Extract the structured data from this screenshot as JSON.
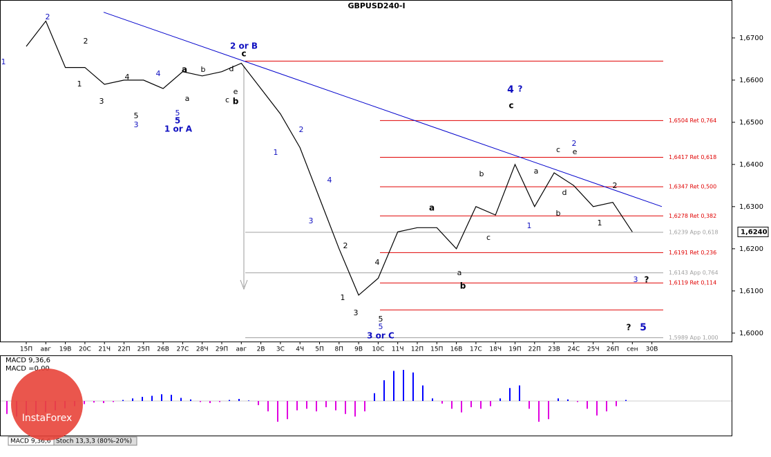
{
  "chart_data": [
    {
      "type": "line",
      "title": "GBPUSD240-I",
      "categories": [
        "15П",
        "авг",
        "19В",
        "20С",
        "21Ч",
        "22П",
        "25П",
        "26В",
        "27С",
        "28Ч",
        "29П",
        "авг",
        "2В",
        "3С",
        "4Ч",
        "5П",
        "8П",
        "9В",
        "10С",
        "11Ч",
        "12П",
        "15П",
        "16В",
        "17С",
        "18Ч",
        "19П",
        "22П",
        "23В",
        "24С",
        "25Ч",
        "26П",
        "сен",
        "30В"
      ],
      "series": [
        {
          "color": "#000000",
          "values": [
            1.668,
            1.674,
            1.663,
            1.663,
            1.659,
            1.66,
            1.66,
            1.658,
            1.662,
            1.661,
            1.662,
            1.664,
            1.658,
            1.652,
            1.644,
            1.632,
            1.62,
            1.609,
            1.613,
            1.624,
            1.625,
            1.625,
            1.62,
            1.63,
            1.628,
            1.64,
            1.63,
            1.638,
            1.635,
            1.63,
            1.631,
            1.624,
            null
          ]
        }
      ],
      "ylim": [
        1.598,
        1.679
      ],
      "yticks": [
        {
          "value": 1.6,
          "label": "1,6000"
        },
        {
          "value": 1.61,
          "label": "1,6100"
        },
        {
          "value": 1.62,
          "label": "1,6200"
        },
        {
          "value": 1.63,
          "label": "1,6300"
        },
        {
          "value": 1.64,
          "label": "1,6400"
        },
        {
          "value": 1.65,
          "label": "1,6500"
        },
        {
          "value": 1.66,
          "label": "1,6600"
        },
        {
          "value": 1.67,
          "label": "1,6700"
        }
      ],
      "current_price": {
        "value": 1.624,
        "label": "1,6240"
      },
      "trendline": {
        "color": "#0000cc",
        "values": [
          1.6761,
          1.63
        ]
      },
      "levels": [
        {
          "value": 1.6645,
          "color": "#e00000"
        },
        {
          "value": 1.6504,
          "label": "1,6504 Ret 0,764",
          "color": "#e00000"
        },
        {
          "value": 1.6417,
          "label": "1,6417 Ret 0,618",
          "color": "#e00000"
        },
        {
          "value": 1.6347,
          "label": "1,6347 Ret 0,500",
          "color": "#e00000"
        },
        {
          "value": 1.6278,
          "label": "1,6278 Ret 0,382",
          "color": "#e00000"
        },
        {
          "value": 1.6239,
          "label": "1,6239 App 0,618",
          "color": "#a0a0a0"
        },
        {
          "value": 1.6191,
          "label": "1,6191 Ret 0,236",
          "color": "#e00000"
        },
        {
          "value": 1.6143,
          "label": "1,6143 App 0,764",
          "color": "#a0a0a0"
        },
        {
          "value": 1.6119,
          "label": "1,6119 Ret 0,114",
          "color": "#e00000"
        },
        {
          "value": 1.6055,
          "color": "#e00000"
        },
        {
          "value": 1.5989,
          "label": "1,5989 App 1,000",
          "color": "#a0a0a0"
        }
      ],
      "annotations": [
        "1",
        "2",
        "2",
        "1",
        "3",
        "4",
        "4",
        "5",
        "3",
        "5",
        "5",
        "1 or A",
        "a",
        "a",
        "b",
        "c",
        "b",
        "d",
        "e",
        "2 or B",
        "c",
        "1",
        "2",
        "4",
        "3",
        "2",
        "1",
        "3",
        "4",
        "5",
        "5",
        "3 or C",
        "a",
        "a",
        "b",
        "b",
        "c",
        "4",
        "?",
        "c",
        "a",
        "1",
        "c",
        "2",
        "e",
        "d",
        "b",
        "1",
        "2",
        "3",
        "?",
        "?",
        "5"
      ]
    },
    {
      "type": "bar",
      "title": "MACD 9,36,6",
      "subtitle": "MACD =0,00",
      "positive_color": "#0000ff",
      "negative_color": "#e000e0",
      "values": [
        -25,
        -30,
        -28,
        -25,
        -22,
        -18,
        -14,
        -10,
        -6,
        -3,
        -4,
        -2,
        2,
        5,
        8,
        10,
        13,
        12,
        6,
        3,
        -2,
        -4,
        -2,
        2,
        4,
        1,
        -8,
        -20,
        -40,
        -35,
        -18,
        -15,
        -20,
        -12,
        -18,
        -25,
        -30,
        -20,
        15,
        40,
        58,
        60,
        55,
        30,
        5,
        -5,
        -15,
        -22,
        -12,
        -15,
        -10,
        5,
        25,
        30,
        -15,
        -40,
        -35,
        5,
        3,
        -2,
        -15,
        -28,
        -20,
        -10,
        2
      ]
    }
  ],
  "tabs": [
    "MACD 9,36,6",
    "Stoch 13,3,3 (80%-20%)"
  ],
  "watermark": "InstaForex"
}
